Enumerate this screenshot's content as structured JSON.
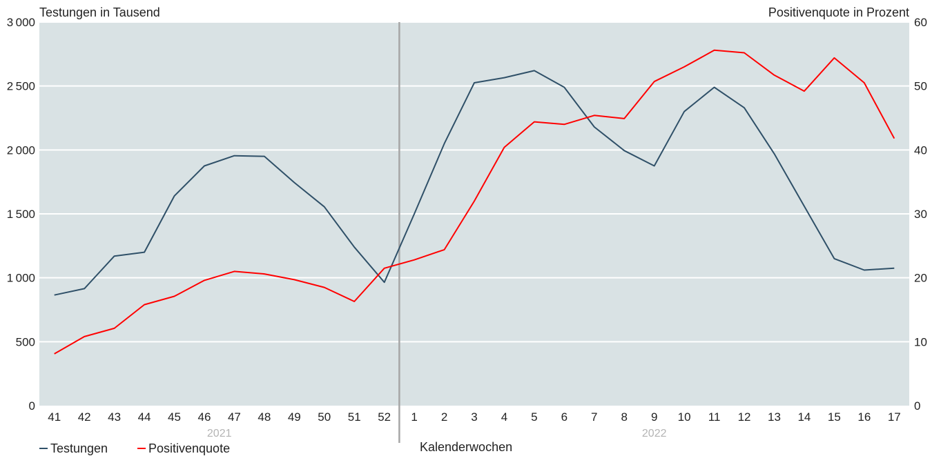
{
  "chart_data": {
    "type": "line",
    "title": "",
    "xlabel": "Kalenderwochen",
    "ylabel_left": "Testungen in Tausend",
    "ylabel_right": "Positivenquote in Prozent",
    "categories": [
      "41",
      "42",
      "43",
      "44",
      "45",
      "46",
      "47",
      "48",
      "49",
      "50",
      "51",
      "52",
      "1",
      "2",
      "3",
      "4",
      "5",
      "6",
      "7",
      "8",
      "9",
      "10",
      "11",
      "12",
      "13",
      "14",
      "15",
      "16",
      "17"
    ],
    "year_labels": [
      "2021",
      "2022"
    ],
    "ylim_left": [
      0,
      3000
    ],
    "yticks_left": [
      "0",
      "500",
      "1000",
      "1500",
      "2000",
      "2500",
      "3000"
    ],
    "ylim_right": [
      0,
      60
    ],
    "yticks_right": [
      "0",
      "10",
      "20",
      "30",
      "40",
      "50",
      "60"
    ],
    "grid": true,
    "legend_position": "bottom-left",
    "colors": {
      "background": "#d9e2e4",
      "testungen": "#2f5068",
      "positivenquote": "#ff0000",
      "divider": "#a6a6a6"
    },
    "series": [
      {
        "name": "Testungen",
        "axis": "left",
        "values": [
          865,
          915,
          1170,
          1200,
          1640,
          1875,
          1955,
          1950,
          1745,
          1555,
          1240,
          965,
          1500,
          2050,
          2525,
          2565,
          2620,
          2490,
          2180,
          1995,
          1875,
          2300,
          2490,
          2330,
          1970,
          1560,
          1150,
          1060,
          1075
        ]
      },
      {
        "name": "Positivenquote",
        "axis": "right",
        "values": [
          8.1,
          10.8,
          12.1,
          15.8,
          17.1,
          19.6,
          21.0,
          20.6,
          19.7,
          18.5,
          16.3,
          21.5,
          22.8,
          24.4,
          32.0,
          40.4,
          44.4,
          44.0,
          45.4,
          44.9,
          50.7,
          53.0,
          55.6,
          55.2,
          51.7,
          49.2,
          54.4,
          50.5,
          41.8
        ]
      }
    ]
  }
}
